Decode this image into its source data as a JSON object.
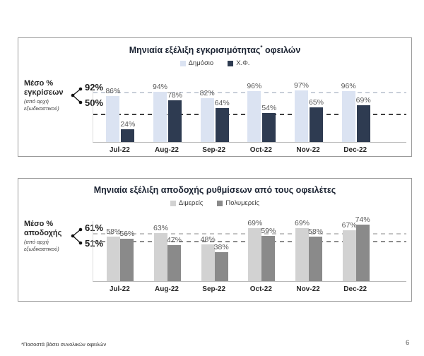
{
  "footnote": "*Ποσοστά βάσει συνολικών οφειλών",
  "page_number": "6",
  "chart_data": [
    {
      "type": "bar",
      "title": "Μηνιαία εξέλιξη εγκρισιμότητας* οφειλών",
      "categories": [
        "Jul-22",
        "Aug-22",
        "Sep-22",
        "Oct-22",
        "Nov-22",
        "Dec-22"
      ],
      "series": [
        {
          "name": "Δημόσιο",
          "color": "#dbe3f2",
          "values": [
            86,
            94,
            82,
            96,
            97,
            96
          ]
        },
        {
          "name": "Χ.Φ.",
          "color": "#2e3b51",
          "values": [
            24,
            78,
            64,
            54,
            65,
            69
          ]
        }
      ],
      "value_suffix": "%",
      "ylim": [
        0,
        100
      ],
      "grid": false,
      "legend_position": "top",
      "reference_lines": [
        {
          "label": "92%",
          "value": 92,
          "color": "#c9cfd9",
          "style": "dashed"
        },
        {
          "label": "50%",
          "value": 50,
          "color": "#404040",
          "style": "dashed"
        }
      ],
      "annotation": {
        "title": "Μέσο % εγκρίσεων",
        "subtitle": "(από αρχή εξωδικαστικού)"
      }
    },
    {
      "type": "bar",
      "title": "Μηνιαία εξέλιξη αποδοχής ρυθμίσεων από τους οφειλέτες",
      "categories": [
        "Jul-22",
        "Aug-22",
        "Sep-22",
        "Oct-22",
        "Nov-22",
        "Dec-22"
      ],
      "series": [
        {
          "name": "Διμερείς",
          "color": "#d2d2d2",
          "values": [
            58,
            63,
            48,
            69,
            69,
            67
          ]
        },
        {
          "name": "Πολυμερείς",
          "color": "#8a8a8a",
          "values": [
            56,
            47,
            38,
            59,
            58,
            74
          ]
        }
      ],
      "value_suffix": "%",
      "ylim": [
        0,
        100
      ],
      "grid": false,
      "legend_position": "top",
      "reference_lines": [
        {
          "label": "61%",
          "value": 61,
          "color": "#c4c4c4",
          "style": "dashed"
        },
        {
          "label": "51%",
          "value": 51,
          "color": "#8c8c8c",
          "style": "dashed"
        }
      ],
      "annotation": {
        "title": "Μέσο % αποδοχής",
        "subtitle": "(από αρχή εξωδικαστικού)"
      }
    }
  ]
}
